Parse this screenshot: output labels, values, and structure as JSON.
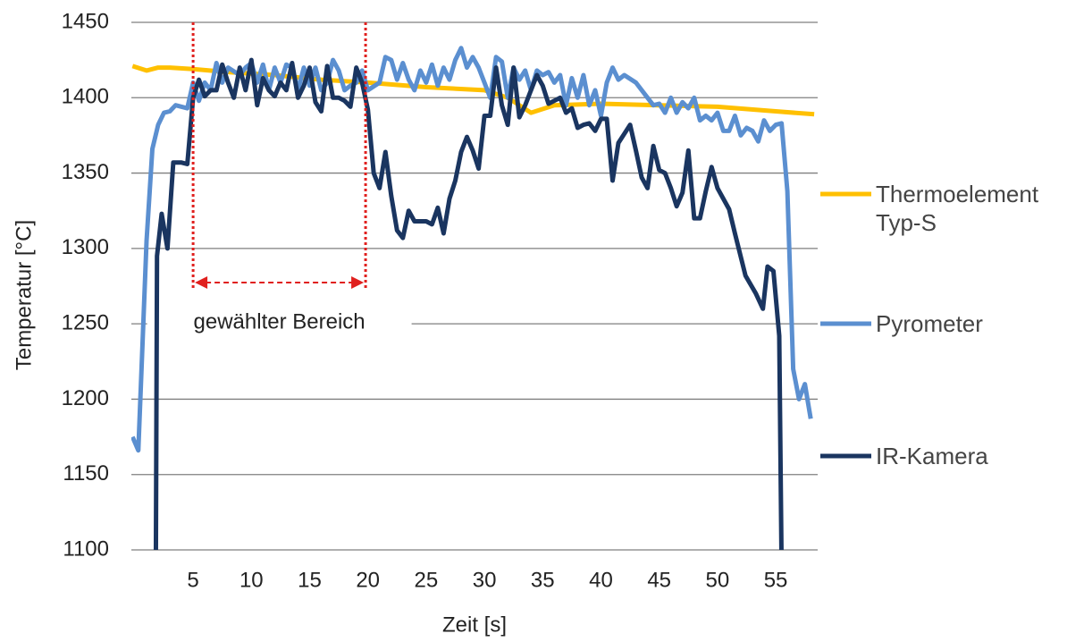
{
  "chart_data": {
    "type": "line",
    "xlabel": "Zeit [s]",
    "ylabel": "Temperatur [°C]",
    "xlim": [
      -0.3,
      58.6
    ],
    "ylim": [
      1100,
      1450
    ],
    "xticks": [
      5,
      10,
      15,
      20,
      25,
      30,
      35,
      40,
      45,
      50,
      55
    ],
    "yticks": [
      1100,
      1150,
      1200,
      1250,
      1300,
      1350,
      1400,
      1450
    ],
    "grid": true,
    "legend": "right",
    "annotations": [
      {
        "text": "gewählter Bereich",
        "x_range": [
          5,
          19.8
        ]
      }
    ],
    "series": [
      {
        "name": "Thermoelement Typ-S",
        "color": "#ffc000",
        "x": [
          -0.2,
          1,
          2,
          3,
          5,
          8,
          12,
          16,
          20,
          25,
          30,
          32,
          34,
          36,
          40,
          45,
          50,
          55,
          58.3
        ],
        "values": [
          1421,
          1418,
          1420,
          1420,
          1419,
          1417,
          1415,
          1412,
          1410,
          1407,
          1405,
          1400,
          1390,
          1395,
          1396,
          1395,
          1394,
          1391,
          1389
        ]
      },
      {
        "name": "Pyrometer",
        "color": "#5b8fd0",
        "x": [
          -0.2,
          0.3,
          1,
          1.5,
          2,
          2.5,
          3,
          3.5,
          4.5,
          5,
          5.5,
          6,
          6.5,
          7,
          7.5,
          8,
          9,
          9.5,
          10,
          10.5,
          11,
          11.5,
          12,
          12.5,
          13,
          13.5,
          14,
          14.5,
          15,
          15.5,
          16,
          16.5,
          17,
          17.5,
          18,
          18.5,
          19,
          19.5,
          20,
          21,
          21.5,
          22,
          22.5,
          23,
          23.5,
          24,
          24.5,
          25,
          25.5,
          26,
          26.5,
          27,
          27.5,
          28,
          28.5,
          29,
          29.5,
          30,
          30.5,
          31,
          31.5,
          32,
          32.5,
          33,
          33.5,
          34,
          34.5,
          35,
          35.5,
          36,
          36.5,
          37,
          37.5,
          38,
          38.5,
          39,
          39.5,
          40,
          40.5,
          41,
          41.5,
          42,
          43,
          44,
          44.5,
          45,
          45.5,
          46,
          46.5,
          47,
          47.5,
          48,
          48.5,
          49,
          49.5,
          50,
          50.5,
          51,
          51.5,
          52,
          52.5,
          53,
          53.5,
          54,
          54.5,
          55,
          55.5,
          56,
          56.5,
          57,
          57.5,
          58
        ],
        "values": [
          1175,
          1166,
          1305,
          1366,
          1382,
          1390,
          1391,
          1395,
          1393,
          1410,
          1398,
          1410,
          1405,
          1423,
          1410,
          1420,
          1415,
          1420,
          1423,
          1410,
          1422,
          1405,
          1420,
          1410,
          1422,
          1420,
          1405,
          1420,
          1408,
          1420,
          1405,
          1410,
          1425,
          1418,
          1405,
          1408,
          1410,
          1418,
          1405,
          1410,
          1427,
          1425,
          1412,
          1423,
          1412,
          1405,
          1418,
          1410,
          1422,
          1408,
          1420,
          1412,
          1425,
          1433,
          1420,
          1427,
          1420,
          1410,
          1400,
          1427,
          1424,
          1400,
          1420,
          1412,
          1418,
          1405,
          1418,
          1415,
          1417,
          1410,
          1415,
          1395,
          1413,
          1400,
          1415,
          1395,
          1405,
          1388,
          1410,
          1420,
          1412,
          1415,
          1410,
          1400,
          1395,
          1396,
          1390,
          1400,
          1390,
          1397,
          1393,
          1400,
          1385,
          1388,
          1385,
          1390,
          1378,
          1378,
          1388,
          1375,
          1380,
          1378,
          1371,
          1385,
          1378,
          1382,
          1383,
          1338,
          1220,
          1200,
          1210,
          1187
        ]
      },
      {
        "name": "IR-Kamera",
        "color": "#1a3560",
        "x": [
          1.8,
          1.9,
          2.3,
          2.8,
          3.3,
          4,
          4.5,
          5,
          5.5,
          6,
          6.5,
          7,
          7.5,
          8,
          8.5,
          9,
          9.5,
          10,
          10.5,
          11,
          11.5,
          12,
          12.5,
          13,
          13.5,
          14,
          14.5,
          15,
          15.5,
          16,
          16.5,
          17,
          17.5,
          18,
          18.5,
          19,
          19.5,
          20,
          20.5,
          21,
          21.5,
          22,
          22.5,
          23,
          23.5,
          24,
          25,
          25.5,
          26,
          26.5,
          27,
          27.5,
          28,
          28.5,
          29,
          29.5,
          30,
          30.5,
          31,
          31.5,
          32,
          32.5,
          33,
          33.5,
          34,
          34.5,
          35,
          35.5,
          36,
          36.5,
          37,
          37.5,
          38,
          38.5,
          39,
          39.5,
          40,
          40.5,
          41,
          41.5,
          42,
          42.5,
          43,
          43.5,
          44,
          44.5,
          45,
          45.5,
          46,
          46.5,
          47,
          47.5,
          48,
          48.5,
          49,
          49.5,
          50,
          51,
          51.5,
          52.4,
          53.3,
          53.9,
          54.3,
          54.8,
          55.3,
          55.5
        ],
        "values": [
          1090,
          1295,
          1323,
          1300,
          1357,
          1357,
          1356,
          1400,
          1412,
          1401,
          1405,
          1405,
          1422,
          1410,
          1400,
          1420,
          1405,
          1425,
          1395,
          1413,
          1405,
          1401,
          1410,
          1405,
          1423,
          1400,
          1408,
          1420,
          1397,
          1391,
          1421,
          1400,
          1400,
          1398,
          1394,
          1420,
          1410,
          1392,
          1350,
          1340,
          1364,
          1335,
          1312,
          1307,
          1325,
          1318,
          1318,
          1316,
          1327,
          1310,
          1333,
          1345,
          1364,
          1374,
          1365,
          1353,
          1388,
          1388,
          1420,
          1395,
          1382,
          1420,
          1387,
          1395,
          1405,
          1415,
          1408,
          1396,
          1398,
          1400,
          1390,
          1393,
          1380,
          1382,
          1383,
          1378,
          1386,
          1386,
          1345,
          1370,
          1376,
          1382,
          1365,
          1347,
          1340,
          1368,
          1352,
          1350,
          1340,
          1328,
          1337,
          1365,
          1320,
          1320,
          1338,
          1354,
          1340,
          1326,
          1310,
          1282,
          1270,
          1260,
          1288,
          1285,
          1242,
          1090
        ]
      }
    ]
  }
}
